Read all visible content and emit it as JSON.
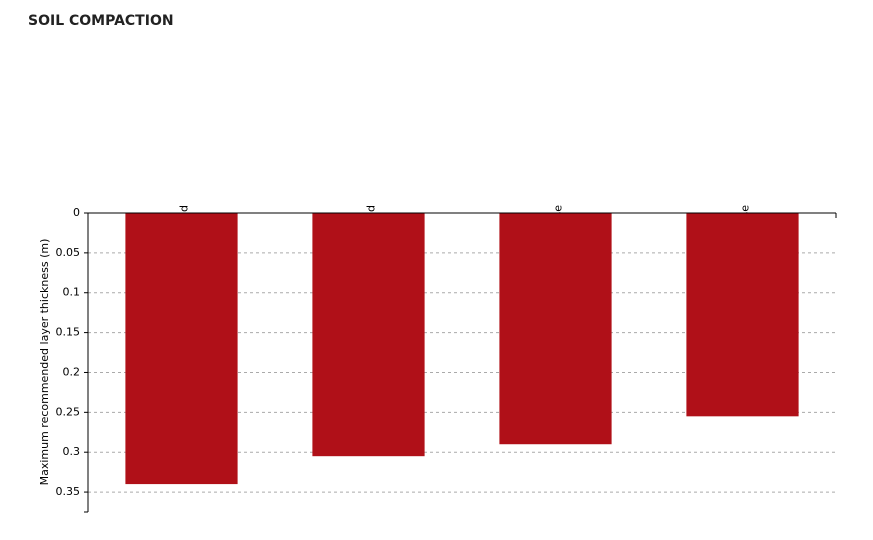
{
  "chart_data": {
    "type": "bar",
    "title": "SOIL COMPACTION",
    "y_label": "Maximum recommended layer thickness (m)",
    "categories": [
      "Gravel, Multi Graded",
      "Sand, Multi Graded",
      "Subbase",
      "Base"
    ],
    "values": [
      0.34,
      0.305,
      0.29,
      0.255
    ],
    "color": "#b01018",
    "ylim": [
      0,
      0.375
    ],
    "yticks": [
      0,
      0.05,
      0.1,
      0.15,
      0.2,
      0.25,
      0.3,
      0.35
    ],
    "y_inverted": true,
    "grid": true
  }
}
